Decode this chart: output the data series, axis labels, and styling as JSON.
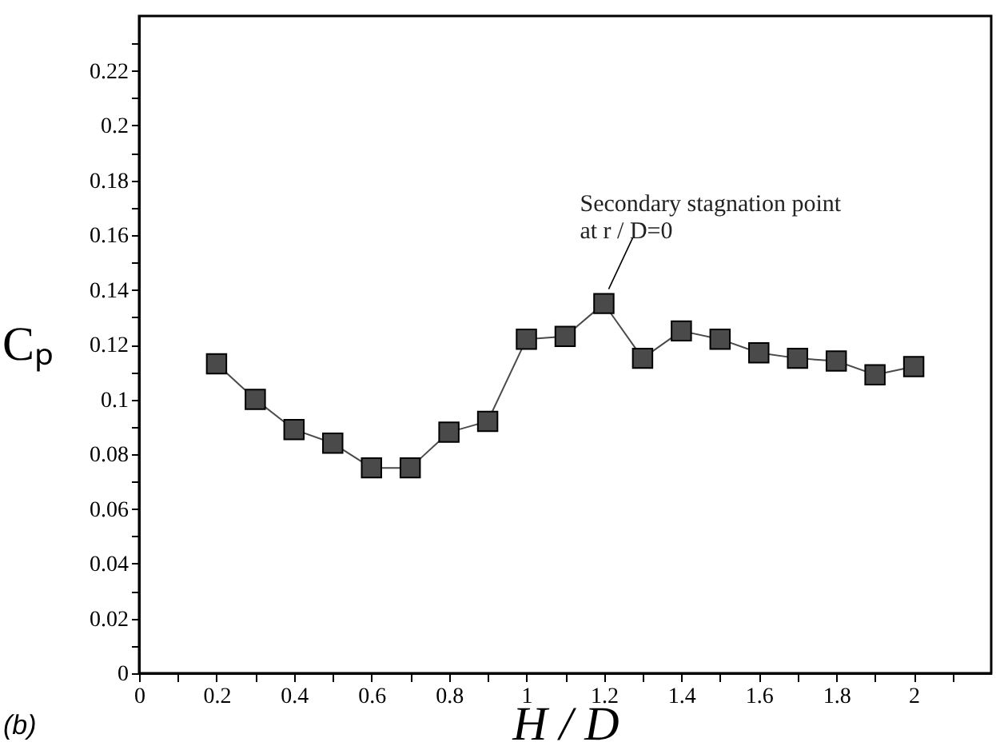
{
  "chart_data": {
    "type": "line",
    "xlabel": "H / D",
    "ylabel": "Cₚ",
    "x": [
      0.2,
      0.3,
      0.4,
      0.5,
      0.6,
      0.7,
      0.8,
      0.9,
      1.0,
      1.1,
      1.2,
      1.3,
      1.4,
      1.5,
      1.6,
      1.7,
      1.8,
      1.9,
      2.0
    ],
    "series": [
      {
        "color": "#4a4a4a",
        "values": [
          0.113,
          0.1,
          0.089,
          0.084,
          0.075,
          0.075,
          0.088,
          0.092,
          0.122,
          0.123,
          0.135,
          0.115,
          0.125,
          0.122,
          0.117,
          0.115,
          0.114,
          0.109,
          0.112
        ]
      }
    ],
    "xlim": [
      0,
      2.2
    ],
    "xticks": [
      0,
      {
        "value": 0.1,
        "label": null
      },
      0.2,
      {
        "value": 0.3,
        "label": null
      },
      0.4,
      {
        "value": 0.5,
        "label": null
      },
      0.6,
      {
        "value": 0.7,
        "label": null
      },
      0.8,
      {
        "value": 0.9,
        "label": null
      },
      1,
      {
        "value": 1.1,
        "label": null
      },
      1.2,
      {
        "value": 1.3,
        "label": null
      },
      1.4,
      {
        "value": 1.5,
        "label": null
      },
      1.6,
      {
        "value": 1.7,
        "label": null
      },
      1.8,
      {
        "value": 1.9,
        "label": null
      },
      2,
      {
        "value": 2.1,
        "label": null
      }
    ],
    "ylim": [
      0,
      0.24
    ],
    "yticks": [
      0,
      {
        "value": 0.01,
        "label": null
      },
      0.02,
      {
        "value": 0.03,
        "label": null
      },
      0.04,
      {
        "value": 0.05,
        "label": null
      },
      0.06,
      {
        "value": 0.07,
        "label": null
      },
      0.08,
      {
        "value": 0.09,
        "label": null
      },
      0.1,
      {
        "value": 0.11,
        "label": null
      },
      0.12,
      {
        "value": 0.13,
        "label": null
      },
      0.14,
      {
        "value": 0.15,
        "label": null
      },
      0.16,
      {
        "value": 0.17,
        "label": null
      },
      0.18,
      {
        "value": 0.19,
        "label": null
      },
      0.2,
      {
        "value": 0.21,
        "label": null
      },
      0.22,
      {
        "value": 0.23,
        "label": null
      }
    ],
    "marker": "square",
    "line_style": "solid",
    "grid": false,
    "annotations": [
      {
        "text": "Secondary stagnation point\nat r / D=0",
        "x": 1.2,
        "y": 0.135
      },
      "(b)"
    ]
  }
}
